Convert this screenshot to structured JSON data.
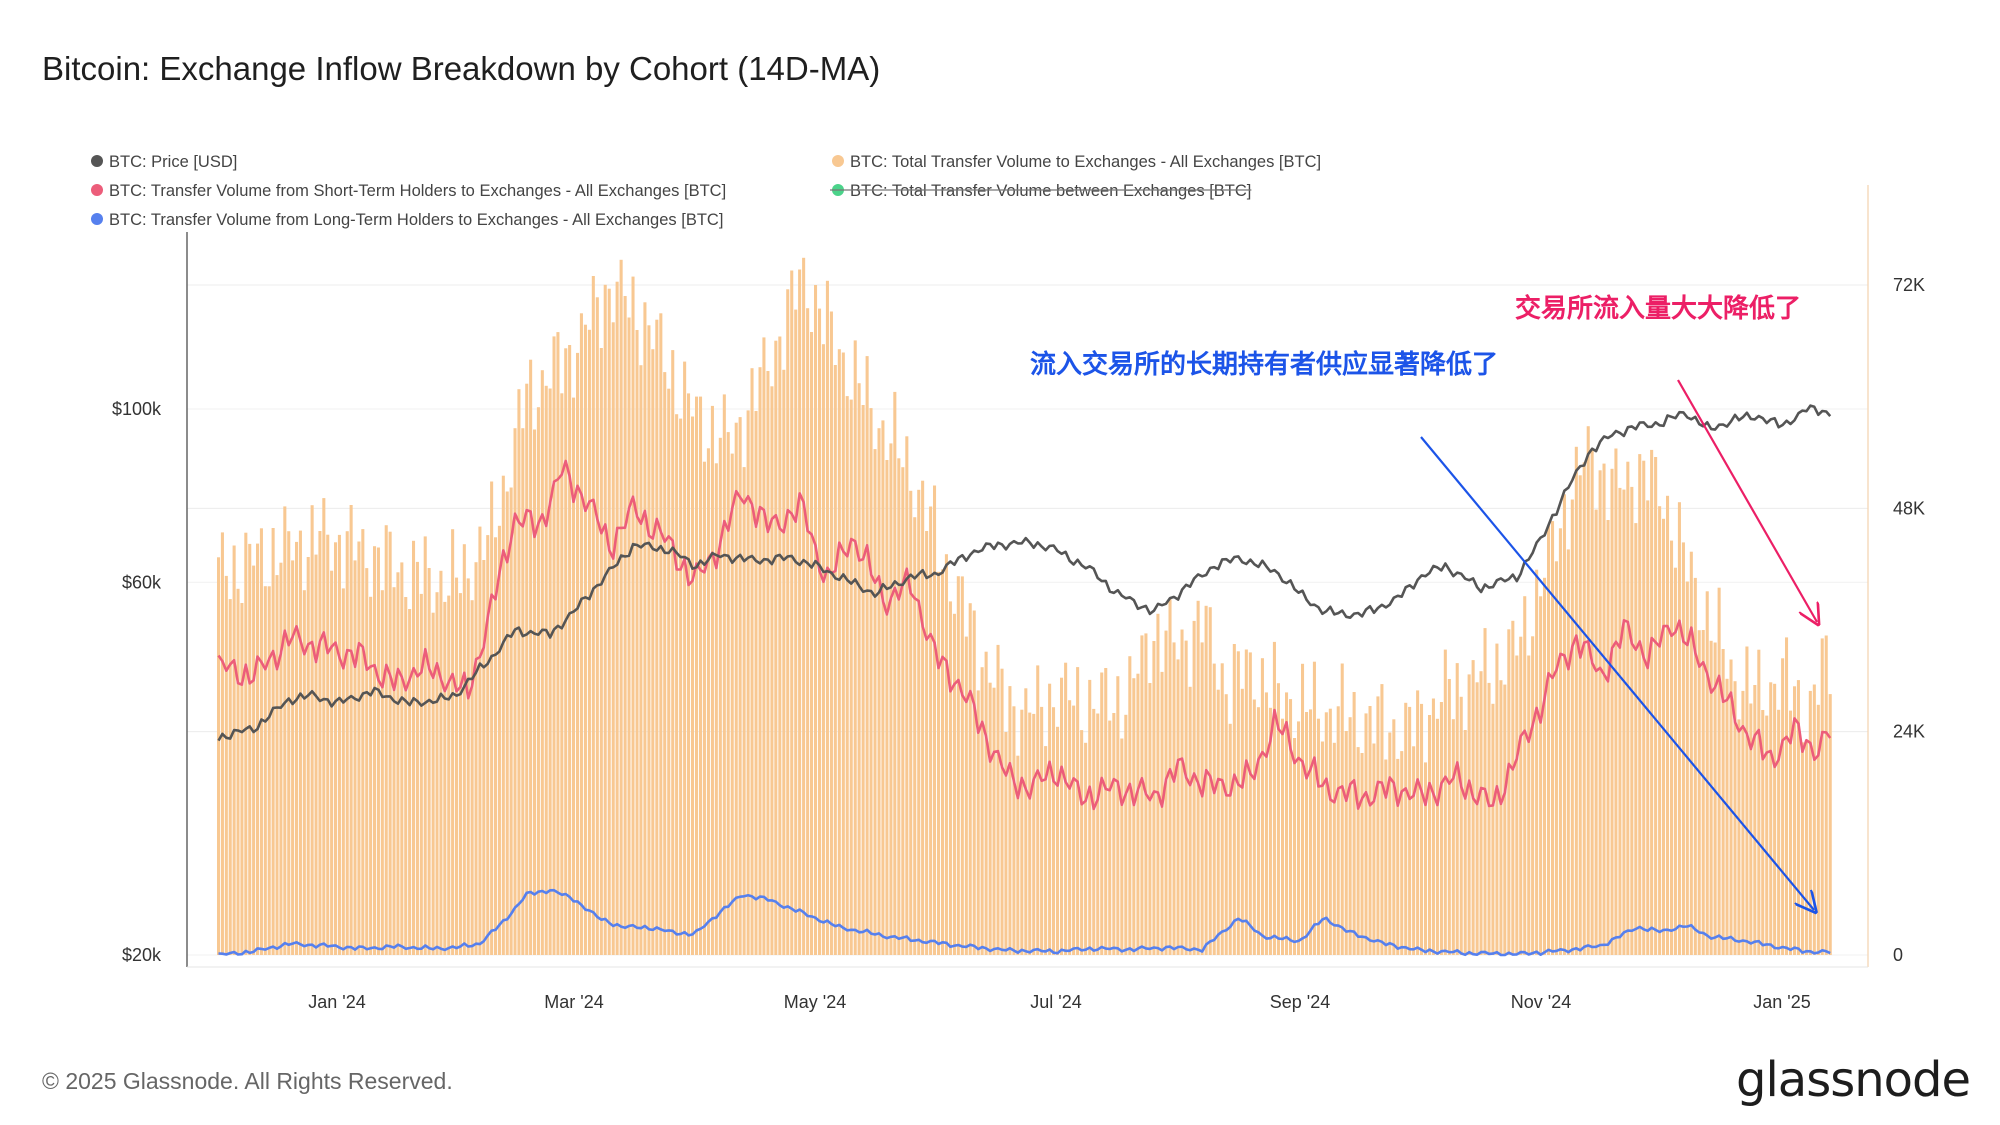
{
  "title": "Bitcoin: Exchange Inflow Breakdown by Cohort (14D-MA)",
  "footer": "© 2025 Glassnode. All Rights Reserved.",
  "logo": "glassnode",
  "colors": {
    "price": "#555555",
    "total": "#f8c892",
    "sth": "#ec5d7a",
    "lth": "#5680ee",
    "between": "#4bd38a",
    "annot_blue": "#1c54e8",
    "annot_red": "#ec1f66"
  },
  "legend": [
    {
      "label": "BTC: Price [USD]",
      "color": "#555555",
      "struck": false
    },
    {
      "label": "BTC: Total Transfer Volume to Exchanges - All Exchanges [BTC]",
      "color": "#f8c892",
      "struck": false
    },
    {
      "label": "BTC: Transfer Volume from Short-Term Holders to Exchanges - All Exchanges [BTC]",
      "color": "#ec5d7a",
      "struck": false
    },
    {
      "label": "BTC: Total Transfer Volume between Exchanges [BTC]",
      "color": "#4bd38a",
      "struck": true
    },
    {
      "label": "BTC: Transfer Volume from Long-Term Holders to Exchanges - All Exchanges [BTC]",
      "color": "#5680ee",
      "struck": false
    }
  ],
  "annotations": {
    "red_text": "交易所流入量大大降低了",
    "blue_text": "流入交易所的长期持有者供应显著降低了"
  },
  "chart_data": {
    "type": "bar+line",
    "title": "Bitcoin: Exchange Inflow Breakdown by Cohort (14D-MA)",
    "x_range": [
      "2023-12-01",
      "2025-01-12"
    ],
    "x_ticks": [
      {
        "label": "Jan '24",
        "month": 1
      },
      {
        "label": "Mar '24",
        "month": 3
      },
      {
        "label": "May '24",
        "month": 5
      },
      {
        "label": "Jul '24",
        "month": 7
      },
      {
        "label": "Sep '24",
        "month": 9
      },
      {
        "label": "Nov '24",
        "month": 11
      },
      {
        "label": "Jan '25",
        "month": 13
      }
    ],
    "left_axis": {
      "scale": "log",
      "unit": "USD",
      "ylim": [
        20000,
        200000
      ],
      "ticks": [
        {
          "value": 20000,
          "label": "$20k"
        },
        {
          "value": 60000,
          "label": "$60k"
        },
        {
          "value": 100000,
          "label": "$100k"
        }
      ]
    },
    "right_axis": {
      "scale": "linear",
      "unit": "BTC",
      "ylim": [
        0,
        80000
      ],
      "ticks": [
        {
          "value": 0,
          "label": "0"
        },
        {
          "value": 24000,
          "label": "24K"
        },
        {
          "value": 48000,
          "label": "48K"
        },
        {
          "value": 72000,
          "label": "72K"
        }
      ]
    },
    "series_price": {
      "name": "BTC: Price [USD]",
      "axis": "left",
      "points": [
        [
          0,
          38000
        ],
        [
          0.3,
          39000
        ],
        [
          0.6,
          42500
        ],
        [
          0.8,
          43000
        ],
        [
          1.0,
          42000
        ],
        [
          1.3,
          43500
        ],
        [
          1.6,
          42000
        ],
        [
          1.9,
          42500
        ],
        [
          2.0,
          43000
        ],
        [
          2.3,
          48000
        ],
        [
          2.5,
          52000
        ],
        [
          2.8,
          51500
        ],
        [
          3.0,
          55000
        ],
        [
          3.3,
          62000
        ],
        [
          3.5,
          67000
        ],
        [
          3.8,
          66000
        ],
        [
          4.0,
          63000
        ],
        [
          4.2,
          65000
        ],
        [
          4.5,
          64000
        ],
        [
          4.8,
          64500
        ],
        [
          5.0,
          63000
        ],
        [
          5.2,
          61000
        ],
        [
          5.5,
          58000
        ],
        [
          5.8,
          61000
        ],
        [
          6.0,
          61500
        ],
        [
          6.3,
          65500
        ],
        [
          6.5,
          67000
        ],
        [
          6.8,
          67500
        ],
        [
          7.0,
          66000
        ],
        [
          7.3,
          62000
        ],
        [
          7.5,
          58000
        ],
        [
          7.8,
          55000
        ],
        [
          8.0,
          58000
        ],
        [
          8.3,
          63000
        ],
        [
          8.5,
          64500
        ],
        [
          8.8,
          62000
        ],
        [
          9.0,
          58000
        ],
        [
          9.2,
          55000
        ],
        [
          9.5,
          54500
        ],
        [
          9.8,
          57000
        ],
        [
          10.0,
          61000
        ],
        [
          10.2,
          63000
        ],
        [
          10.5,
          59000
        ],
        [
          10.8,
          61000
        ],
        [
          11.0,
          68000
        ],
        [
          11.2,
          78000
        ],
        [
          11.4,
          88000
        ],
        [
          11.6,
          93000
        ],
        [
          11.8,
          95000
        ],
        [
          12.0,
          96000
        ],
        [
          12.2,
          99000
        ],
        [
          12.4,
          94000
        ],
        [
          12.6,
          97000
        ],
        [
          12.8,
          98000
        ],
        [
          13.0,
          95000
        ],
        [
          13.2,
          100000
        ],
        [
          13.4,
          99000
        ]
      ]
    },
    "series_total": {
      "name": "BTC: Total Transfer Volume to Exchanges - All Exchanges [BTC]",
      "axis": "right",
      "type": "bar",
      "anchors": [
        [
          0,
          41000
        ],
        [
          0.4,
          43000
        ],
        [
          0.9,
          45000
        ],
        [
          1.3,
          43000
        ],
        [
          1.6,
          41000
        ],
        [
          2.0,
          40000
        ],
        [
          2.3,
          45000
        ],
        [
          2.6,
          60000
        ],
        [
          3.0,
          65000
        ],
        [
          3.3,
          72000
        ],
        [
          3.6,
          68000
        ],
        [
          4.0,
          58000
        ],
        [
          4.3,
          55000
        ],
        [
          4.6,
          63000
        ],
        [
          4.9,
          73000
        ],
        [
          5.2,
          65000
        ],
        [
          5.5,
          58000
        ],
        [
          5.8,
          52000
        ],
        [
          6.0,
          45000
        ],
        [
          6.2,
          38000
        ],
        [
          6.4,
          32000
        ],
        [
          6.6,
          27000
        ],
        [
          6.8,
          26000
        ],
        [
          7.0,
          28000
        ],
        [
          7.3,
          27000
        ],
        [
          7.6,
          28000
        ],
        [
          7.8,
          35000
        ],
        [
          8.0,
          33000
        ],
        [
          8.2,
          36000
        ],
        [
          8.4,
          29000
        ],
        [
          8.6,
          31000
        ],
        [
          8.8,
          28000
        ],
        [
          9.0,
          27000
        ],
        [
          9.3,
          26000
        ],
        [
          9.6,
          25000
        ],
        [
          9.9,
          24000
        ],
        [
          10.2,
          28000
        ],
        [
          10.5,
          30000
        ],
        [
          10.8,
          33000
        ],
        [
          11.0,
          40000
        ],
        [
          11.2,
          48000
        ],
        [
          11.4,
          54000
        ],
        [
          11.6,
          50000
        ],
        [
          11.8,
          52000
        ],
        [
          12.0,
          50000
        ],
        [
          12.2,
          42000
        ],
        [
          12.4,
          36000
        ],
        [
          12.6,
          30000
        ],
        [
          12.8,
          28000
        ],
        [
          13.0,
          30000
        ],
        [
          13.2,
          26000
        ],
        [
          13.4,
          32000
        ]
      ]
    },
    "series_sth": {
      "name": "BTC: Transfer Volume from Short-Term Holders to Exchanges - All Exchanges [BTC]",
      "axis": "right",
      "anchors": [
        [
          0,
          31000
        ],
        [
          0.3,
          30000
        ],
        [
          0.6,
          34000
        ],
        [
          0.9,
          33000
        ],
        [
          1.2,
          32000
        ],
        [
          1.5,
          29000
        ],
        [
          1.7,
          31000
        ],
        [
          1.9,
          30000
        ],
        [
          2.1,
          28000
        ],
        [
          2.3,
          37000
        ],
        [
          2.5,
          47000
        ],
        [
          2.7,
          46000
        ],
        [
          2.9,
          52000
        ],
        [
          3.1,
          49000
        ],
        [
          3.3,
          44000
        ],
        [
          3.5,
          48000
        ],
        [
          3.8,
          44000
        ],
        [
          4.0,
          40000
        ],
        [
          4.2,
          44000
        ],
        [
          4.4,
          50000
        ],
        [
          4.6,
          46000
        ],
        [
          4.9,
          48000
        ],
        [
          5.1,
          40000
        ],
        [
          5.3,
          45000
        ],
        [
          5.6,
          38000
        ],
        [
          5.8,
          40000
        ],
        [
          6.0,
          32000
        ],
        [
          6.2,
          29000
        ],
        [
          6.4,
          24000
        ],
        [
          6.6,
          19000
        ],
        [
          6.8,
          18000
        ],
        [
          7.0,
          20000
        ],
        [
          7.2,
          17000
        ],
        [
          7.5,
          18000
        ],
        [
          7.8,
          17000
        ],
        [
          8.0,
          20000
        ],
        [
          8.3,
          18000
        ],
        [
          8.6,
          19000
        ],
        [
          8.8,
          25000
        ],
        [
          9.0,
          21000
        ],
        [
          9.2,
          18000
        ],
        [
          9.5,
          17000
        ],
        [
          9.8,
          18000
        ],
        [
          10.0,
          17000
        ],
        [
          10.3,
          19000
        ],
        [
          10.6,
          16000
        ],
        [
          10.9,
          24000
        ],
        [
          11.1,
          30000
        ],
        [
          11.3,
          34000
        ],
        [
          11.5,
          30000
        ],
        [
          11.7,
          35000
        ],
        [
          11.9,
          32000
        ],
        [
          12.1,
          36000
        ],
        [
          12.3,
          32000
        ],
        [
          12.5,
          28000
        ],
        [
          12.7,
          24000
        ],
        [
          12.9,
          21000
        ],
        [
          13.1,
          24000
        ],
        [
          13.3,
          22000
        ],
        [
          13.4,
          24000
        ]
      ]
    },
    "series_lth": {
      "name": "BTC: Transfer Volume from Long-Term Holders to Exchanges - All Exchanges [BTC]",
      "axis": "right",
      "anchors": [
        [
          0,
          0
        ],
        [
          0.3,
          400
        ],
        [
          0.6,
          1200
        ],
        [
          0.9,
          1000
        ],
        [
          1.2,
          700
        ],
        [
          1.5,
          900
        ],
        [
          1.8,
          700
        ],
        [
          2.0,
          800
        ],
        [
          2.2,
          1200
        ],
        [
          2.4,
          3500
        ],
        [
          2.6,
          6500
        ],
        [
          2.8,
          7000
        ],
        [
          3.0,
          6000
        ],
        [
          3.2,
          4000
        ],
        [
          3.4,
          3000
        ],
        [
          3.6,
          3000
        ],
        [
          3.8,
          2500
        ],
        [
          4.0,
          2200
        ],
        [
          4.2,
          4500
        ],
        [
          4.4,
          6500
        ],
        [
          4.6,
          6000
        ],
        [
          4.8,
          5000
        ],
        [
          5.0,
          4000
        ],
        [
          5.2,
          3000
        ],
        [
          5.4,
          2500
        ],
        [
          5.6,
          2000
        ],
        [
          5.9,
          1500
        ],
        [
          6.2,
          1000
        ],
        [
          6.6,
          500
        ],
        [
          7.0,
          400
        ],
        [
          7.3,
          700
        ],
        [
          7.6,
          600
        ],
        [
          7.9,
          800
        ],
        [
          8.2,
          600
        ],
        [
          8.5,
          4000
        ],
        [
          8.7,
          2000
        ],
        [
          9.0,
          1500
        ],
        [
          9.2,
          4000
        ],
        [
          9.4,
          2500
        ],
        [
          9.7,
          1200
        ],
        [
          10.0,
          500
        ],
        [
          10.4,
          200
        ],
        [
          10.8,
          100
        ],
        [
          11.2,
          500
        ],
        [
          11.5,
          1000
        ],
        [
          11.8,
          3000
        ],
        [
          12.0,
          2500
        ],
        [
          12.2,
          3200
        ],
        [
          12.4,
          2000
        ],
        [
          12.7,
          1500
        ],
        [
          13.0,
          800
        ],
        [
          13.2,
          400
        ],
        [
          13.4,
          300
        ]
      ]
    }
  }
}
